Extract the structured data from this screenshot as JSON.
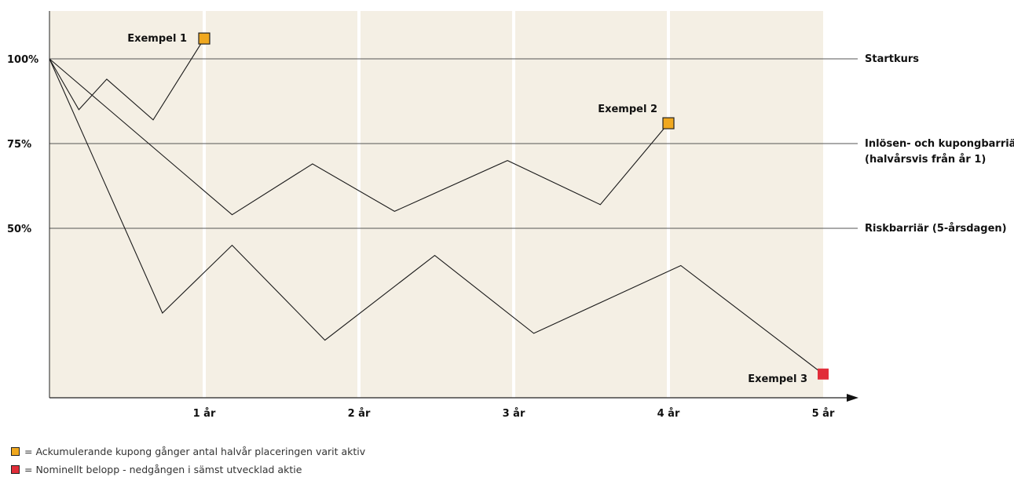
{
  "chart_data": {
    "type": "line",
    "x_ticks": [
      {
        "x": 1,
        "label": "1 år"
      },
      {
        "x": 2,
        "label": "2 år"
      },
      {
        "x": 3,
        "label": "3 år"
      },
      {
        "x": 4,
        "label": "4 år"
      },
      {
        "x": 5,
        "label": "5 år"
      }
    ],
    "xlim": [
      0,
      5
    ],
    "y_ticks": [
      {
        "y": 100,
        "label": "100%"
      },
      {
        "y": 75,
        "label": "75%"
      },
      {
        "y": 50,
        "label": "50%"
      }
    ],
    "ylim": [
      0,
      115
    ],
    "reference_lines": [
      {
        "y": 100,
        "label": "Startkurs"
      },
      {
        "y": 75,
        "label": "Inlösen- och kupongbarriär",
        "label2": "(halvårsvis från år 1)"
      },
      {
        "y": 50,
        "label": "Riskbarriär (5-årsdagen)"
      }
    ],
    "series": [
      {
        "marker": "Exempel 1",
        "marker_color": "#f0a81f",
        "points": [
          [
            0,
            100
          ],
          [
            0.19,
            85
          ],
          [
            0.37,
            94
          ],
          [
            0.67,
            82
          ],
          [
            1.0,
            106
          ]
        ]
      },
      {
        "marker": "Exempel 2",
        "marker_color": "#f0a81f",
        "points": [
          [
            0,
            100
          ],
          [
            1.18,
            54
          ],
          [
            1.7,
            69
          ],
          [
            2.23,
            55
          ],
          [
            2.96,
            70
          ],
          [
            3.56,
            57
          ],
          [
            4.0,
            81
          ]
        ]
      },
      {
        "marker": "Exempel 3",
        "marker_color": "#e12d39",
        "points": [
          [
            0,
            100
          ],
          [
            0.73,
            25
          ],
          [
            1.18,
            45
          ],
          [
            1.78,
            17
          ],
          [
            2.49,
            42
          ],
          [
            3.13,
            19
          ],
          [
            4.08,
            39
          ],
          [
            5.0,
            7
          ]
        ]
      }
    ],
    "grid": false,
    "background_color": "#f4efe4"
  },
  "legend": [
    {
      "color": "#f0a81f",
      "text": "= Ackumulerande kupong gånger antal halvår placeringen varit aktiv"
    },
    {
      "color": "#e12d39",
      "text": "= Nominellt belopp - nedgången i sämst utvecklad aktie"
    }
  ]
}
